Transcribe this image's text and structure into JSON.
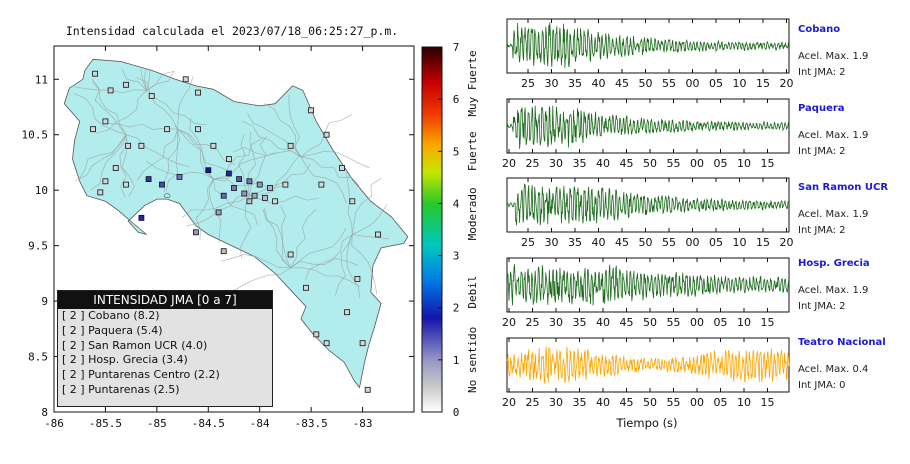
{
  "chart_data": [
    {
      "type": "map",
      "title": "Intensidad calculada el 2023/07/18_06:25:27_p.m.",
      "xlim": [
        -86,
        -82.5
      ],
      "ylim": [
        8,
        11.3
      ],
      "x_ticks": [
        "-86",
        "-85.5",
        "-85",
        "-84.5",
        "-84",
        "-83.5",
        "-83"
      ],
      "y_ticks": [
        "8",
        "8.5",
        "9",
        "9.5",
        "10",
        "10.5",
        "11"
      ],
      "colorbar": {
        "range": [
          0,
          7
        ],
        "ticks": [
          "0",
          "1",
          "2",
          "3",
          "4",
          "5",
          "6",
          "7"
        ],
        "category_labels": [
          "No sentido",
          "Debil",
          "Moderado",
          "Fuerte",
          "Muy Fuerte"
        ]
      },
      "legend": {
        "title": "INTENSIDAD JMA [0 a 7]",
        "entries": [
          "[ 2 ] Cobano (8.2)",
          "[ 2 ] Paquera (5.4)",
          "[ 2 ] San Ramon UCR (4.0)",
          "[ 2 ] Hosp. Grecia (3.4)",
          "[ 2 ] Puntarenas Centro (2.2)",
          "[ 2 ] Puntarenas (2.5)"
        ]
      },
      "stations": [
        {
          "lon": -85.6,
          "lat": 11.05,
          "i": 0.5
        },
        {
          "lon": -85.45,
          "lat": 10.9,
          "i": 0.5
        },
        {
          "lon": -85.3,
          "lat": 10.95,
          "i": 0.5
        },
        {
          "lon": -85.05,
          "lat": 10.85,
          "i": 0.5
        },
        {
          "lon": -84.72,
          "lat": 11.0,
          "i": 0.5
        },
        {
          "lon": -84.6,
          "lat": 10.88,
          "i": 0.5
        },
        {
          "lon": -85.5,
          "lat": 10.62,
          "i": 0.5
        },
        {
          "lon": -85.62,
          "lat": 10.55,
          "i": 0.5
        },
        {
          "lon": -85.28,
          "lat": 10.4,
          "i": 0.5
        },
        {
          "lon": -85.15,
          "lat": 10.4,
          "i": 0.5
        },
        {
          "lon": -84.9,
          "lat": 10.55,
          "i": 0.5
        },
        {
          "lon": -84.45,
          "lat": 10.4,
          "i": 0.5
        },
        {
          "lon": -84.6,
          "lat": 10.55,
          "i": 0.5
        },
        {
          "lon": -84.3,
          "lat": 10.28,
          "i": 0.5
        },
        {
          "lon": -85.4,
          "lat": 10.2,
          "i": 0.5
        },
        {
          "lon": -85.5,
          "lat": 10.08,
          "i": 0.5
        },
        {
          "lon": -85.55,
          "lat": 9.98,
          "i": 0.5
        },
        {
          "lon": -85.3,
          "lat": 10.05,
          "i": 0.5
        },
        {
          "lon": -85.08,
          "lat": 10.1,
          "i": 1.6
        },
        {
          "lon": -84.95,
          "lat": 10.05,
          "i": 1.5
        },
        {
          "lon": -84.78,
          "lat": 10.12,
          "i": 1.2
        },
        {
          "lon": -84.5,
          "lat": 10.18,
          "i": 1.8
        },
        {
          "lon": -84.3,
          "lat": 10.15,
          "i": 1.7
        },
        {
          "lon": -84.2,
          "lat": 10.1,
          "i": 1.4
        },
        {
          "lon": -84.1,
          "lat": 10.08,
          "i": 1.2
        },
        {
          "lon": -84.0,
          "lat": 10.05,
          "i": 1.0
        },
        {
          "lon": -83.9,
          "lat": 10.02,
          "i": 0.7
        },
        {
          "lon": -84.25,
          "lat": 10.02,
          "i": 1.2
        },
        {
          "lon": -84.15,
          "lat": 9.97,
          "i": 1.0
        },
        {
          "lon": -84.05,
          "lat": 9.95,
          "i": 0.8
        },
        {
          "lon": -83.95,
          "lat": 9.93,
          "i": 0.6
        },
        {
          "lon": -84.35,
          "lat": 9.95,
          "i": 1.3
        },
        {
          "lon": -84.1,
          "lat": 9.9,
          "i": 0.6
        },
        {
          "lon": -83.85,
          "lat": 9.9,
          "i": 0.5
        },
        {
          "lon": -83.75,
          "lat": 10.05,
          "i": 0.5
        },
        {
          "lon": -84.4,
          "lat": 9.8,
          "i": 0.9
        },
        {
          "lon": -85.15,
          "lat": 9.75,
          "i": 1.7
        },
        {
          "lon": -84.62,
          "lat": 9.62,
          "i": 1.0
        },
        {
          "lon": -84.35,
          "lat": 9.45,
          "i": 0.6
        },
        {
          "lon": -83.5,
          "lat": 10.72,
          "i": 0.5
        },
        {
          "lon": -83.35,
          "lat": 10.5,
          "i": 0.5
        },
        {
          "lon": -83.7,
          "lat": 10.4,
          "i": 0.5
        },
        {
          "lon": -83.2,
          "lat": 10.2,
          "i": 0.5
        },
        {
          "lon": -83.4,
          "lat": 10.05,
          "i": 0.5
        },
        {
          "lon": -83.1,
          "lat": 9.9,
          "i": 0.5
        },
        {
          "lon": -82.85,
          "lat": 9.6,
          "i": 0.5
        },
        {
          "lon": -83.7,
          "lat": 9.42,
          "i": 0.5
        },
        {
          "lon": -83.55,
          "lat": 9.12,
          "i": 0.5
        },
        {
          "lon": -83.05,
          "lat": 9.2,
          "i": 0.5
        },
        {
          "lon": -83.15,
          "lat": 8.9,
          "i": 0.5
        },
        {
          "lon": -83.45,
          "lat": 8.7,
          "i": 0.5
        },
        {
          "lon": -83.35,
          "lat": 8.62,
          "i": 0.5
        },
        {
          "lon": -83.0,
          "lat": 8.62,
          "i": 0.5
        },
        {
          "lon": -82.95,
          "lat": 8.2,
          "i": 0.5
        }
      ]
    },
    {
      "type": "line",
      "xlabel": "Tiempo (s)",
      "series": [
        {
          "name": "Cobano",
          "accel_label": "Acel. Max. 1.9",
          "jma_label": "Int JMA: 2",
          "ticks": [
            "25",
            "30",
            "35",
            "40",
            "45",
            "50",
            "55",
            "00",
            "05",
            "10",
            "15",
            "20"
          ],
          "tick_start": 1
        },
        {
          "name": "Paquera",
          "accel_label": "Acel. Max. 1.9",
          "jma_label": "Int JMA: 2",
          "ticks": [
            "20",
            "25",
            "30",
            "35",
            "40",
            "45",
            "50",
            "55",
            "00",
            "05",
            "10",
            "15"
          ],
          "tick_start": 0
        },
        {
          "name": "San Ramon UCR",
          "accel_label": "Acel. Max. 1.9",
          "jma_label": "Int JMA: 2",
          "ticks": [
            "25",
            "30",
            "35",
            "40",
            "45",
            "50",
            "55",
            "00",
            "05",
            "10",
            "15",
            "20"
          ],
          "tick_start": 1
        },
        {
          "name": "Hosp. Grecia",
          "accel_label": "Acel. Max. 1.9",
          "jma_label": "Int JMA: 2",
          "ticks": [
            "20",
            "25",
            "30",
            "35",
            "40",
            "45",
            "50",
            "55",
            "00",
            "05",
            "10",
            "15"
          ],
          "tick_start": 0
        },
        {
          "name": "Teatro Nacional",
          "accel_label": "Acel. Max. 0.4",
          "jma_label": "Int JMA: 0",
          "ticks": [
            "20",
            "25",
            "30",
            "35",
            "40",
            "45",
            "50",
            "55",
            "00",
            "05",
            "10",
            "15"
          ],
          "tick_start": 0
        }
      ]
    }
  ]
}
